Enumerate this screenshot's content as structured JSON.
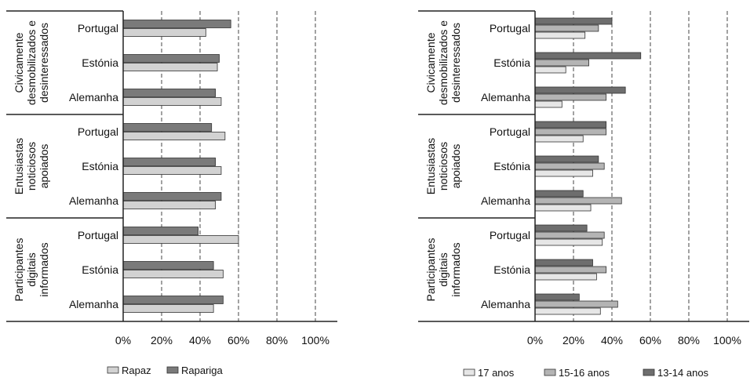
{
  "colors": {
    "rapaz": "#d2d2d2",
    "rapariga": "#7a7a7a",
    "age_17": "#e6e6e6",
    "age_15_16": "#b4b4b4",
    "age_13_14": "#6e6e6e",
    "bar_stroke": "#333333",
    "axis": "#222222"
  },
  "chart_data": [
    {
      "type": "bar",
      "orientation": "horizontal",
      "title": "",
      "xlabel": "",
      "ylabel": "",
      "xlim": [
        0,
        1
      ],
      "x_ticks": [
        "0%",
        "20%",
        "40%",
        "60%",
        "80%",
        "100%"
      ],
      "grid": "vertical dashed",
      "legend_position": "bottom",
      "legend": [
        "Rapaz",
        "Rapariga"
      ],
      "groups": [
        {
          "name": "Civicamente desmobilizados e desinteressados",
          "lines": [
            "Civicamente",
            "desmobilizados e",
            "desinteressados"
          ],
          "countries": [
            {
              "name": "Portugal",
              "values": {
                "Rapaz": 0.43,
                "Rapariga": 0.56
              }
            },
            {
              "name": "Estónia",
              "values": {
                "Rapaz": 0.49,
                "Rapariga": 0.5
              }
            },
            {
              "name": "Alemanha",
              "values": {
                "Rapaz": 0.51,
                "Rapariga": 0.48
              }
            }
          ]
        },
        {
          "name": "Entusiastas noticiosos apoiados",
          "lines": [
            "Entusiastas",
            "noticiosos",
            "apoiados"
          ],
          "countries": [
            {
              "name": "Portugal",
              "values": {
                "Rapaz": 0.53,
                "Rapariga": 0.46
              }
            },
            {
              "name": "Estónia",
              "values": {
                "Rapaz": 0.51,
                "Rapariga": 0.48
              }
            },
            {
              "name": "Alemanha",
              "values": {
                "Rapaz": 0.48,
                "Rapariga": 0.51
              }
            }
          ]
        },
        {
          "name": "Participantes digitais informados",
          "lines": [
            "Participantes",
            "digitais",
            "informados"
          ],
          "countries": [
            {
              "name": "Portugal",
              "values": {
                "Rapaz": 0.6,
                "Rapariga": 0.39
              }
            },
            {
              "name": "Estónia",
              "values": {
                "Rapaz": 0.52,
                "Rapariga": 0.47
              }
            },
            {
              "name": "Alemanha",
              "values": {
                "Rapaz": 0.47,
                "Rapariga": 0.52
              }
            }
          ]
        }
      ]
    },
    {
      "type": "bar",
      "orientation": "horizontal",
      "title": "",
      "xlabel": "",
      "ylabel": "",
      "xlim": [
        0,
        1
      ],
      "x_ticks": [
        "0%",
        "20%",
        "40%",
        "60%",
        "80%",
        "100%"
      ],
      "grid": "vertical dashed",
      "legend_position": "bottom",
      "legend": [
        "17 anos",
        "15-16 anos",
        "13-14 anos"
      ],
      "groups": [
        {
          "name": "Civicamente desmobilizados e desinteressados",
          "lines": [
            "Civicamente",
            "desmobilizados e",
            "desinteressados"
          ],
          "countries": [
            {
              "name": "Portugal",
              "values": {
                "13-14 anos": 0.4,
                "15-16 anos": 0.33,
                "17 anos": 0.26
              }
            },
            {
              "name": "Estónia",
              "values": {
                "13-14 anos": 0.55,
                "15-16 anos": 0.28,
                "17 anos": 0.16
              }
            },
            {
              "name": "Alemanha",
              "values": {
                "13-14 anos": 0.47,
                "15-16 anos": 0.37,
                "17 anos": 0.14
              }
            }
          ]
        },
        {
          "name": "Entusiastas noticiosos apoiados",
          "lines": [
            "Entusiastas",
            "noticiosos",
            "apoiados"
          ],
          "countries": [
            {
              "name": "Portugal",
              "values": {
                "13-14 anos": 0.37,
                "15-16 anos": 0.37,
                "17 anos": 0.25
              }
            },
            {
              "name": "Estónia",
              "values": {
                "13-14 anos": 0.33,
                "15-16 anos": 0.36,
                "17 anos": 0.3
              }
            },
            {
              "name": "Alemanha",
              "values": {
                "13-14 anos": 0.25,
                "15-16 anos": 0.45,
                "17 anos": 0.29
              }
            }
          ]
        },
        {
          "name": "Participantes digitais informados",
          "lines": [
            "Participantes",
            "digitais",
            "informados"
          ],
          "countries": [
            {
              "name": "Portugal",
              "values": {
                "13-14 anos": 0.27,
                "15-16 anos": 0.36,
                "17 anos": 0.35
              }
            },
            {
              "name": "Estónia",
              "values": {
                "13-14 anos": 0.3,
                "15-16 anos": 0.37,
                "17 anos": 0.32
              }
            },
            {
              "name": "Alemanha",
              "values": {
                "13-14 anos": 0.23,
                "15-16 anos": 0.43,
                "17 anos": 0.34
              }
            }
          ]
        }
      ]
    }
  ]
}
